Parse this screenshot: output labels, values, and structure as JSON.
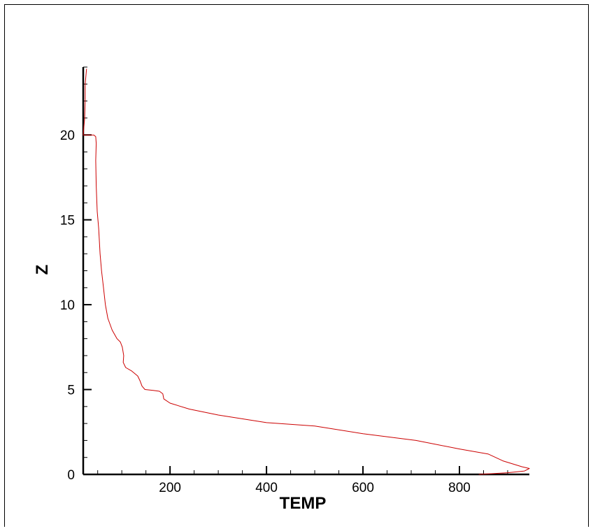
{
  "chart_data": {
    "type": "line",
    "title": "",
    "xlabel": "TEMP",
    "ylabel": "Z",
    "xlim": [
      20,
      945
    ],
    "ylim": [
      0,
      24
    ],
    "x_ticks": [
      200,
      400,
      600,
      800
    ],
    "y_ticks": [
      0,
      5,
      10,
      15,
      20
    ],
    "x_minor_step": 50,
    "y_minor_step": 1,
    "grid": false,
    "legend": "none",
    "line_color": "#cc0000",
    "series": [
      {
        "points": [
          [
            840,
            0.0
          ],
          [
            900,
            0.1
          ],
          [
            935,
            0.2
          ],
          [
            945,
            0.35
          ],
          [
            930,
            0.45
          ],
          [
            890,
            0.8
          ],
          [
            860,
            1.2
          ],
          [
            800,
            1.5
          ],
          [
            710,
            2.0
          ],
          [
            600,
            2.4
          ],
          [
            500,
            2.85
          ],
          [
            400,
            3.05
          ],
          [
            300,
            3.5
          ],
          [
            240,
            3.85
          ],
          [
            200,
            4.2
          ],
          [
            187,
            4.45
          ],
          [
            185,
            4.75
          ],
          [
            178,
            4.9
          ],
          [
            165,
            4.95
          ],
          [
            148,
            5.0
          ],
          [
            142,
            5.2
          ],
          [
            138,
            5.5
          ],
          [
            133,
            5.8
          ],
          [
            120,
            6.1
          ],
          [
            108,
            6.3
          ],
          [
            103,
            6.6
          ],
          [
            104,
            7.0
          ],
          [
            101,
            7.5
          ],
          [
            97,
            7.8
          ],
          [
            90,
            8.0
          ],
          [
            80,
            8.5
          ],
          [
            71,
            9.2
          ],
          [
            66,
            10.0
          ],
          [
            62,
            11.0
          ],
          [
            58,
            12.0
          ],
          [
            55,
            13.0
          ],
          [
            52,
            14.5
          ],
          [
            49,
            15.5
          ],
          [
            47,
            17.0
          ],
          [
            46,
            18.5
          ],
          [
            47,
            19.5
          ],
          [
            46,
            19.9
          ],
          [
            42,
            20.0
          ],
          [
            30,
            20.0
          ],
          [
            20,
            20.0
          ],
          [
            23,
            21.0
          ],
          [
            24,
            22.0
          ],
          [
            24,
            23.0
          ],
          [
            27,
            23.9
          ]
        ]
      }
    ]
  }
}
